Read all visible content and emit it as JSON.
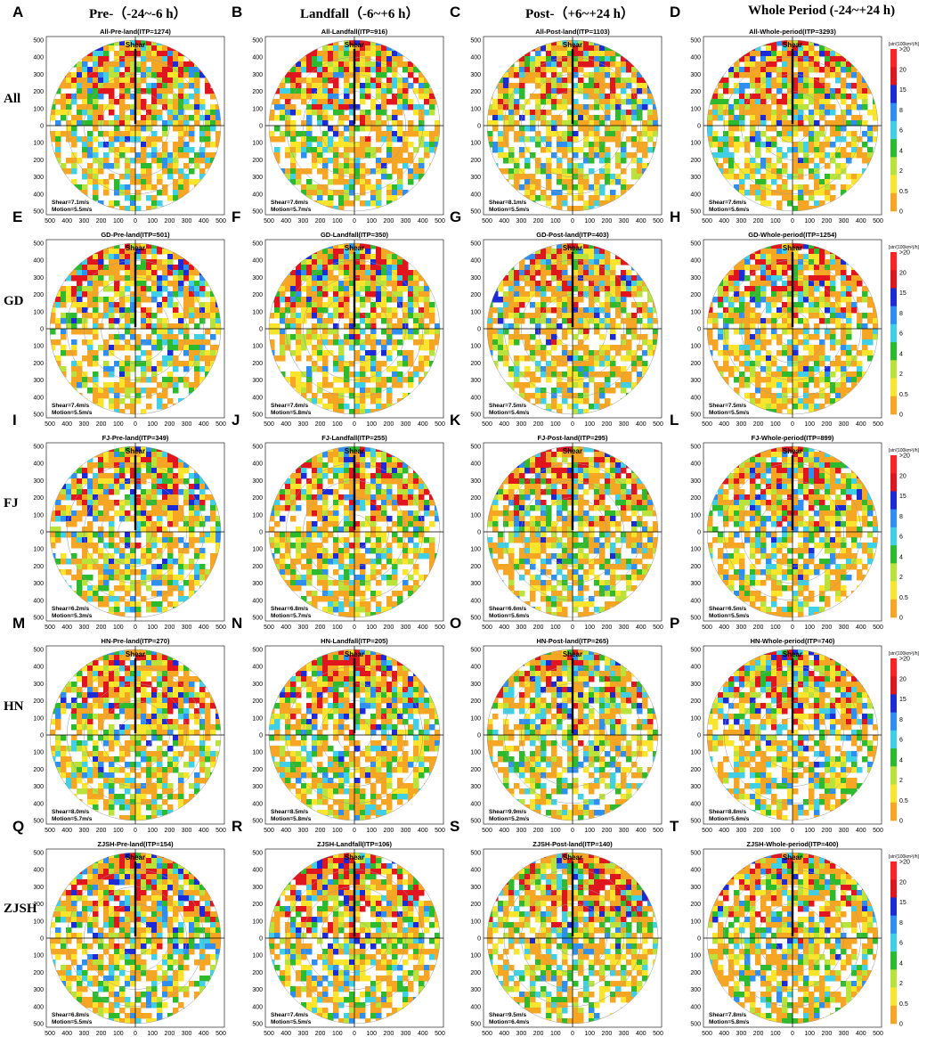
{
  "column_headers": [
    "Pre-（-24~-6 h）",
    "Landfall（-6~+6 h）",
    "Post-（+6~+24 h）",
    "Whole Period (-24~+24 h)"
  ],
  "row_labels": [
    "All",
    "GD",
    "FJ",
    "HN",
    "ZJSH"
  ],
  "colorbar": {
    "title": "[str/(100km²)/h]",
    "levels": [
      "0",
      "0.5",
      "2",
      "4",
      "6",
      "8",
      "15",
      "20",
      ">20"
    ],
    "colors": [
      "#ffffff",
      "#f6a623",
      "#fbe52c",
      "#b9e23a",
      "#2dbb2d",
      "#3fd0e6",
      "#2f8ff0",
      "#1c2bd6",
      "#e0151e",
      "#ff2222"
    ]
  },
  "chart_data": [
    {
      "letter": "A",
      "title": "All-Pre-land(ITP=1274)",
      "shear": "Shear=7.1m/s",
      "motion": "Motion=5.5m/s",
      "type": "heatmap"
    },
    {
      "letter": "B",
      "title": "All-Landfall(ITP=916)",
      "shear": "Shear=7.6m/s",
      "motion": "Motion=5.7m/s",
      "type": "heatmap"
    },
    {
      "letter": "C",
      "title": "All-Post-land(ITP=1103)",
      "shear": "Shear=8.1m/s",
      "motion": "Motion=5.5m/s",
      "type": "heatmap"
    },
    {
      "letter": "D",
      "title": "All-Whole-period(ITP=3293)",
      "shear": "Shear=7.6m/s",
      "motion": "Motion=5.6m/s",
      "type": "heatmap"
    },
    {
      "letter": "E",
      "title": "GD-Pre-land(ITP=501)",
      "shear": "Shear=7.4m/s",
      "motion": "Motion=5.5m/s",
      "type": "heatmap"
    },
    {
      "letter": "F",
      "title": "GD-Landfall(ITP=350)",
      "shear": "Shear=7.6m/s",
      "motion": "Motion=5.8m/s",
      "type": "heatmap"
    },
    {
      "letter": "G",
      "title": "GD-Post-land(ITP=403)",
      "shear": "Shear=7.5m/s",
      "motion": "Motion=5.4m/s",
      "type": "heatmap"
    },
    {
      "letter": "H",
      "title": "GD-Whole-period(ITP=1254)",
      "shear": "Shear=7.5m/s",
      "motion": "Motion=5.5m/s",
      "type": "heatmap"
    },
    {
      "letter": "I",
      "title": "FJ-Pre-land(ITP=349)",
      "shear": "Shear=6.2m/s",
      "motion": "Motion=5.3m/s",
      "type": "heatmap"
    },
    {
      "letter": "J",
      "title": "FJ-Landfall(ITP=255)",
      "shear": "Shear=6.8m/s",
      "motion": "Motion=5.7m/s",
      "type": "heatmap"
    },
    {
      "letter": "K",
      "title": "FJ-Post-land(ITP=295)",
      "shear": "Shear=6.6m/s",
      "motion": "Motion=5.6m/s",
      "type": "heatmap"
    },
    {
      "letter": "L",
      "title": "FJ-Whole-period(ITP=899)",
      "shear": "Shear=6.5m/s",
      "motion": "Motion=5.5m/s",
      "type": "heatmap"
    },
    {
      "letter": "M",
      "title": "HN-Pre-land(ITP=270)",
      "shear": "Shear=8.0m/s",
      "motion": "Motion=5.7m/s",
      "type": "heatmap"
    },
    {
      "letter": "N",
      "title": "HN-Landfall(ITP=205)",
      "shear": "Shear=8.5m/s",
      "motion": "Motion=5.8m/s",
      "type": "heatmap"
    },
    {
      "letter": "O",
      "title": "HN-Post-land(ITP=265)",
      "shear": "Shear=9.9m/s",
      "motion": "Motion=5.2m/s",
      "type": "heatmap"
    },
    {
      "letter": "P",
      "title": "HN-Whole-period(ITP=740)",
      "shear": "Shear=8.8m/s",
      "motion": "Motion=5.6m/s",
      "type": "heatmap"
    },
    {
      "letter": "Q",
      "title": "ZJSH-Pre-land(ITP=154)",
      "shear": "Shear=6.8m/s",
      "motion": "Motion=5.5m/s",
      "type": "heatmap"
    },
    {
      "letter": "R",
      "title": "ZJSH-Landfall(ITP=106)",
      "shear": "Shear=7.4m/s",
      "motion": "Motion=5.5m/s",
      "type": "heatmap"
    },
    {
      "letter": "S",
      "title": "ZJSH-Post-land(ITP=140)",
      "shear": "Shear=9.5m/s",
      "motion": "Motion=6.4m/s",
      "type": "heatmap"
    },
    {
      "letter": "T",
      "title": "ZJSH-Whole-period(ITP=400)",
      "shear": "Shear=7.8m/s",
      "motion": "Motion=5.8m/s",
      "type": "heatmap"
    }
  ],
  "axis": {
    "shear_label": "Shear",
    "x_ticks": [
      "500",
      "400",
      "300",
      "200",
      "100",
      "0",
      "100",
      "200",
      "300",
      "400",
      "500"
    ],
    "y_ticks": [
      "500",
      "400",
      "300",
      "200",
      "100",
      "0",
      "100",
      "200",
      "300",
      "400",
      "500"
    ]
  }
}
